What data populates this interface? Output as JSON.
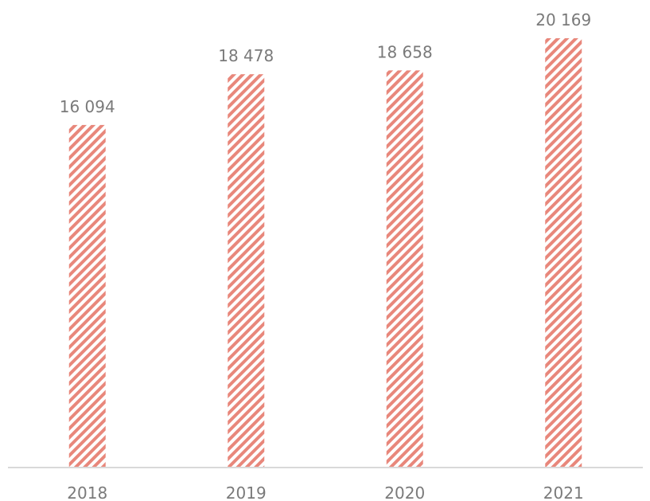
{
  "chart_data": {
    "type": "bar",
    "categories": [
      "2018",
      "2019",
      "2020",
      "2021"
    ],
    "values": [
      16094,
      18478,
      18658,
      20169
    ],
    "value_labels": [
      "16 094",
      "18 478",
      "18 658",
      "20 169"
    ],
    "title": "",
    "xlabel": "",
    "ylabel": "",
    "ylim": [
      0,
      20169
    ],
    "grid": false,
    "legend": "none",
    "colors": {
      "bar_stripe": "#e8877b",
      "baseline": "#d9d9d9",
      "text": "#7a7a7a"
    }
  }
}
